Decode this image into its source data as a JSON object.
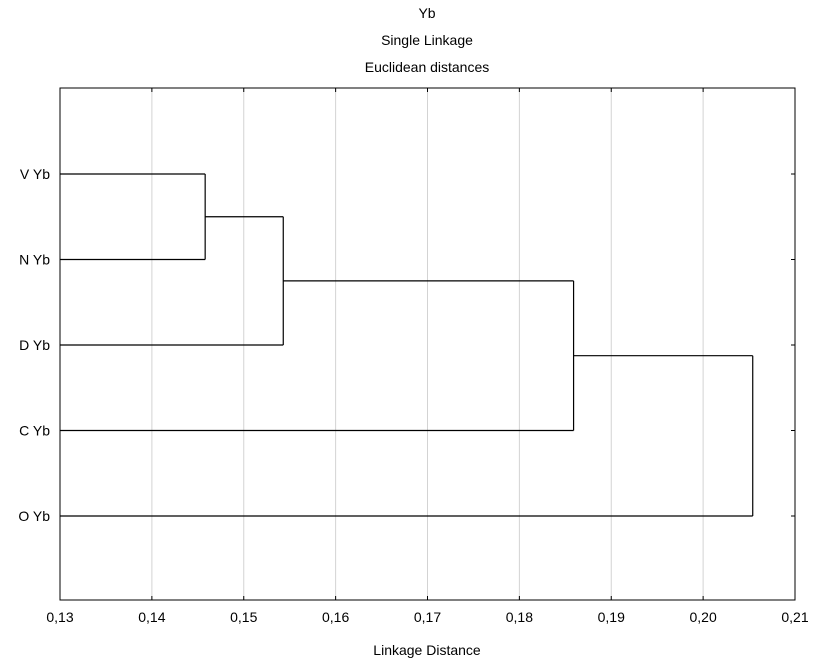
{
  "chart_data": {
    "type": "dendrogram",
    "title": [
      "Yb",
      "Single Linkage",
      "Euclidean distances"
    ],
    "xlabel": "Linkage Distance",
    "xlim": [
      0.13,
      0.21
    ],
    "x_ticks": [
      0.13,
      0.14,
      0.15,
      0.16,
      0.17,
      0.18,
      0.19,
      0.2,
      0.21
    ],
    "x_tick_labels": [
      "0,13",
      "0,14",
      "0,15",
      "0,16",
      "0,17",
      "0,18",
      "0,19",
      "0,20",
      "0,21"
    ],
    "grid": "vertical",
    "leaves": [
      "V Yb",
      "N Yb",
      "D Yb",
      "C Yb",
      "O Yb"
    ],
    "merges": [
      {
        "left": "leaf:0",
        "right": "leaf:1",
        "distance": 0.1458
      },
      {
        "left": "node:0",
        "right": "leaf:2",
        "distance": 0.1543
      },
      {
        "left": "node:1",
        "right": "leaf:3",
        "distance": 0.1859
      },
      {
        "left": "node:2",
        "right": "leaf:4",
        "distance": 0.2054
      }
    ]
  },
  "colors": {
    "line": "#000000",
    "grid": "#d3d3d3",
    "background": "#ffffff"
  }
}
